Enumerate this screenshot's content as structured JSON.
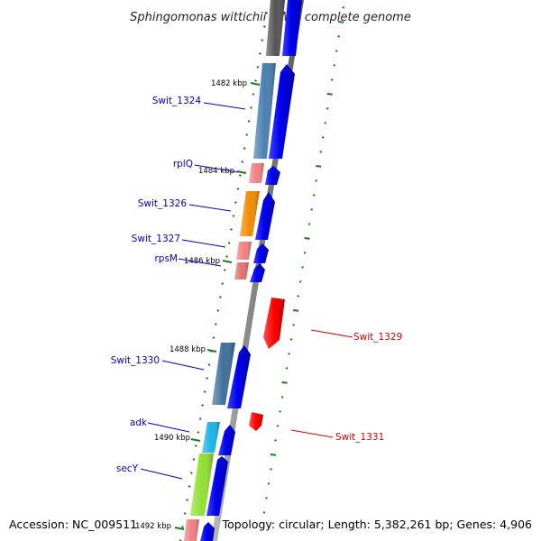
{
  "title": "Sphingomonas wittichii RW1, complete genome",
  "footer": {
    "accession": "Accession: NC_009511",
    "summary": "Topology: circular; Length: 5,382,261 bp; Genes: 4,906"
  },
  "colors": {
    "backbone": "#808080",
    "tick": "#1e7a1e",
    "forward_strand": "#0000ee",
    "reverse_strand": "#ff0000",
    "forward_label": "#0000cc",
    "reverse_label": "#dd0000"
  },
  "ticks": [
    {
      "label": "1482 kbp"
    },
    {
      "label": "1484 kbp"
    },
    {
      "label": "1486 kbp"
    },
    {
      "label": "1488 kbp"
    },
    {
      "label": "1490 kbp"
    },
    {
      "label": "1492 kbp"
    }
  ],
  "genes": [
    {
      "name": "Swit_1324",
      "strand": "forward",
      "category_color": "#4a7fb0"
    },
    {
      "name": "rplQ",
      "strand": "forward",
      "category_color": "#f08080"
    },
    {
      "name": "Swit_1326",
      "strand": "forward",
      "category_color": "#f08a00"
    },
    {
      "name": "Swit_1327",
      "strand": "forward",
      "category_color": "#f08080"
    },
    {
      "name": "rpsM",
      "strand": "forward",
      "category_color": "#e07070"
    },
    {
      "name": "Swit_1329",
      "strand": "reverse",
      "category_color": "#ff0000"
    },
    {
      "name": "Swit_1330",
      "strand": "forward",
      "category_color": "#3e6f9c"
    },
    {
      "name": "Swit_1331",
      "strand": "reverse",
      "category_color": "#ff0000"
    },
    {
      "name": "adk",
      "strand": "forward",
      "category_color": "#19b4e6"
    },
    {
      "name": "secY",
      "strand": "forward",
      "category_color": "#90e030"
    }
  ]
}
